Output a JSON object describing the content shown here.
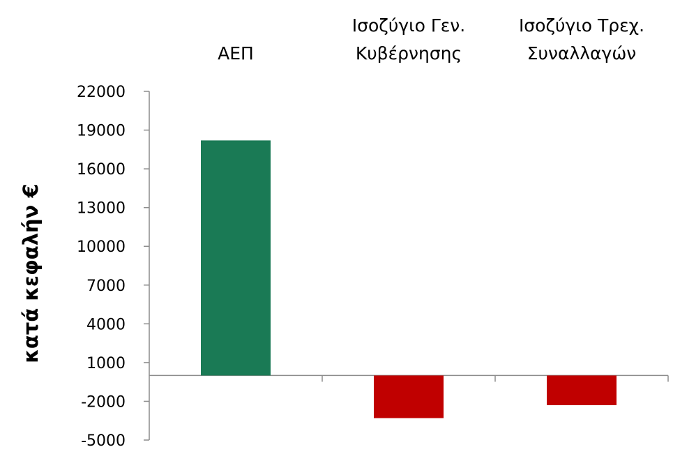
{
  "chart_data": {
    "type": "bar",
    "title": "",
    "ylabel": "κατά κεφαλήν €",
    "xlabel": "",
    "categories": [
      [
        "ΑΕΠ"
      ],
      [
        "Ισοζύγιο Γεν.",
        "Κυβέρνησης"
      ],
      [
        "Ισοζύγιο Τρεχ.",
        "Συναλλαγών"
      ]
    ],
    "values": [
      18200,
      -3300,
      -2300
    ],
    "colors": [
      "#1a7a55",
      "#c00000",
      "#c00000"
    ],
    "ylim": [
      -5000,
      22000
    ],
    "yticks": [
      22000,
      19000,
      16000,
      13000,
      10000,
      7000,
      4000,
      1000,
      -2000,
      -5000
    ],
    "category_labels_position": "top",
    "grid": false,
    "legend": "none"
  }
}
